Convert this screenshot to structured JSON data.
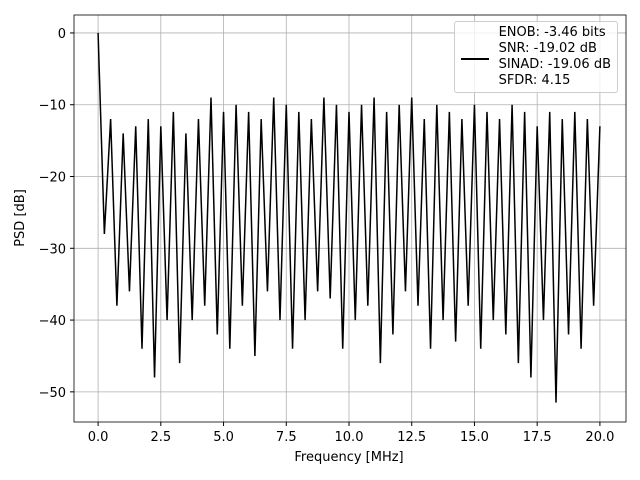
{
  "chart_data": {
    "type": "line",
    "xlabel": "Frequency [MHz]",
    "ylabel": "PSD [dB]",
    "xlim": [
      -0.96,
      21.04
    ],
    "ylim": [
      -54.2,
      2.5
    ],
    "grid": true,
    "legend": "upper right",
    "xticks": [
      {
        "value": 0,
        "label": "0.0"
      },
      {
        "value": 2.5,
        "label": "2.5"
      },
      {
        "value": 5,
        "label": "5.0"
      },
      {
        "value": 7.5,
        "label": "7.5"
      },
      {
        "value": 10,
        "label": "10.0"
      },
      {
        "value": 12.5,
        "label": "12.5"
      },
      {
        "value": 15,
        "label": "15.0"
      },
      {
        "value": 17.5,
        "label": "17.5"
      },
      {
        "value": 20,
        "label": "20.0"
      }
    ],
    "yticks": [
      {
        "value": -50,
        "label": "−50"
      },
      {
        "value": -40,
        "label": "−40"
      },
      {
        "value": -30,
        "label": "−30"
      },
      {
        "value": -20,
        "label": "−20"
      },
      {
        "value": -10,
        "label": "−10"
      },
      0
    ],
    "x": [
      0,
      0.25,
      0.5,
      0.75,
      1,
      1.25,
      1.5,
      1.75,
      2,
      2.25,
      2.5,
      2.75,
      3,
      3.25,
      3.5,
      3.75,
      4,
      4.25,
      4.5,
      4.75,
      5,
      5.25,
      5.5,
      5.75,
      6,
      6.25,
      6.5,
      6.75,
      7,
      7.25,
      7.5,
      7.75,
      8,
      8.25,
      8.5,
      8.75,
      9,
      9.25,
      9.5,
      9.75,
      10,
      10.25,
      10.5,
      10.75,
      11,
      11.25,
      11.5,
      11.75,
      12,
      12.25,
      12.5,
      12.75,
      13,
      13.25,
      13.5,
      13.75,
      14,
      14.25,
      14.5,
      14.75,
      15,
      15.25,
      15.5,
      15.75,
      16,
      16.25,
      16.5,
      16.75,
      17,
      17.25,
      17.5,
      17.75,
      18,
      18.25,
      18.5,
      18.75,
      19,
      19.25,
      19.5,
      19.75,
      20
    ],
    "series": [
      {
        "name": "ENOB: -3.46 bits\nSNR: -19.02 dB\nSINAD: -19.06 dB\nSFDR: 4.15",
        "color": "#000000",
        "values": [
          0,
          -28,
          -12,
          -38,
          -14,
          -36,
          -13,
          -44,
          -12,
          -48,
          -13,
          -40,
          -11,
          -46,
          -14,
          -40,
          -12,
          -38,
          -9,
          -42,
          -11,
          -44,
          -10,
          -38,
          -11,
          -45,
          -12,
          -36,
          -9,
          -40,
          -10,
          -44,
          -11,
          -40,
          -12,
          -36,
          -9,
          -37,
          -10,
          -44,
          -11,
          -40,
          -10,
          -38,
          -9,
          -46,
          -11,
          -42,
          -10,
          -36,
          -9,
          -38,
          -12,
          -44,
          -10,
          -40,
          -11,
          -43,
          -12,
          -38,
          -10,
          -44,
          -11,
          -40,
          -12,
          -42,
          -10,
          -46,
          -11,
          -48,
          -13,
          -40,
          -11,
          -51.5,
          -12,
          -42,
          -11,
          -44,
          -12,
          -38,
          -13
        ]
      }
    ]
  }
}
